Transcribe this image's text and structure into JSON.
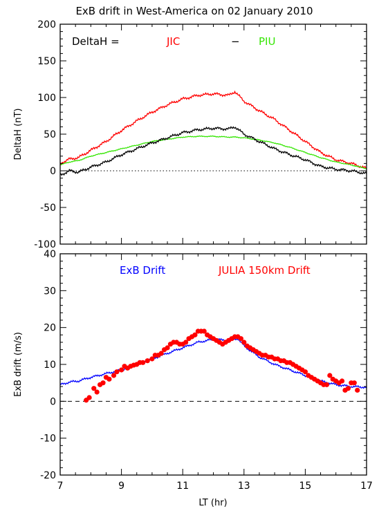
{
  "title": "ExB drift in West-America on 02 January 2010",
  "xlabel": "LT (hr)",
  "colors": {
    "jic": "#ff0000",
    "piu": "#33e600",
    "deltah": "#000000",
    "exb": "#0000ff",
    "julia": "#ff0000",
    "axes": "#000000"
  },
  "chart_data": [
    {
      "type": "line",
      "ylabel": "DeltaH (nT)",
      "xlim": [
        7,
        17
      ],
      "ylim": [
        -100,
        200
      ],
      "xticks": [
        7,
        9,
        11,
        13,
        15,
        17
      ],
      "yticks": [
        -100,
        -50,
        0,
        50,
        100,
        150,
        200
      ],
      "xtick_labels_shown": false,
      "zero_line": "dotted",
      "legend": {
        "placement": "top",
        "text": [
          "DeltaH  =",
          "JIC",
          "−",
          "PIU"
        ]
      },
      "x": [
        7.0,
        7.3,
        7.6,
        8.0,
        8.5,
        9.0,
        9.5,
        10.0,
        10.5,
        11.0,
        11.5,
        12.0,
        12.5,
        12.7,
        13.0,
        13.5,
        14.0,
        14.5,
        15.0,
        15.5,
        16.0,
        16.5,
        17.0
      ],
      "series": [
        {
          "name": "JIC",
          "color": "red",
          "values": [
            10,
            16,
            18,
            28,
            40,
            55,
            68,
            80,
            90,
            98,
            103,
            105,
            103,
            108,
            95,
            82,
            70,
            55,
            40,
            25,
            15,
            10,
            3
          ]
        },
        {
          "name": "PIU",
          "color": "green",
          "values": [
            8,
            12,
            14,
            20,
            25,
            30,
            35,
            40,
            43,
            46,
            47,
            47,
            46,
            46,
            45,
            42,
            38,
            32,
            25,
            18,
            12,
            8,
            3
          ]
        },
        {
          "name": "DeltaH",
          "color": "black",
          "values": [
            -6,
            0,
            -2,
            5,
            12,
            22,
            30,
            38,
            45,
            52,
            56,
            58,
            57,
            60,
            50,
            40,
            30,
            22,
            15,
            6,
            2,
            0,
            -4
          ]
        }
      ]
    },
    {
      "type": "line+scatter",
      "ylabel": "ExB drift (m/s)",
      "xlim": [
        7,
        17
      ],
      "ylim": [
        -20,
        40
      ],
      "xticks": [
        7,
        9,
        11,
        13,
        15,
        17
      ],
      "yticks": [
        -20,
        -10,
        0,
        10,
        20,
        30,
        40
      ],
      "zero_line": "dashed",
      "legend": {
        "placement": "top",
        "text": [
          "ExB Drift",
          "JULIA 150km Drift"
        ]
      },
      "line_series": {
        "name": "ExB Drift",
        "color": "blue",
        "x": [
          7.0,
          7.3,
          7.6,
          8.0,
          8.5,
          9.0,
          9.5,
          10.0,
          10.5,
          11.0,
          11.5,
          12.0,
          12.5,
          12.8,
          13.0,
          13.5,
          14.0,
          14.5,
          15.0,
          15.5,
          16.0,
          16.5,
          17.0
        ],
        "values": [
          4.5,
          5.2,
          5.5,
          6.5,
          7.5,
          8.5,
          10.0,
          11.5,
          13.0,
          14.5,
          16.0,
          16.8,
          16.5,
          17.0,
          15.0,
          12.0,
          10.0,
          8.5,
          7.0,
          5.5,
          4.5,
          4.0,
          3.8
        ]
      },
      "scatter_series": {
        "name": "JULIA 150km Drift",
        "color": "red",
        "points": [
          [
            7.85,
            0.3
          ],
          [
            7.95,
            1.0
          ],
          [
            8.1,
            3.5
          ],
          [
            8.2,
            2.5
          ],
          [
            8.3,
            4.5
          ],
          [
            8.4,
            5.0
          ],
          [
            8.5,
            6.5
          ],
          [
            8.6,
            6.0
          ],
          [
            8.75,
            7.0
          ],
          [
            8.85,
            8.0
          ],
          [
            9.0,
            8.5
          ],
          [
            9.1,
            9.5
          ],
          [
            9.2,
            9.0
          ],
          [
            9.3,
            9.5
          ],
          [
            9.4,
            9.8
          ],
          [
            9.5,
            10.0
          ],
          [
            9.6,
            10.5
          ],
          [
            9.7,
            10.5
          ],
          [
            9.85,
            11.0
          ],
          [
            10.0,
            11.5
          ],
          [
            10.1,
            12.5
          ],
          [
            10.2,
            12.5
          ],
          [
            10.3,
            13.0
          ],
          [
            10.4,
            14.0
          ],
          [
            10.5,
            14.5
          ],
          [
            10.6,
            15.5
          ],
          [
            10.7,
            16.0
          ],
          [
            10.8,
            16.0
          ],
          [
            10.9,
            15.5
          ],
          [
            11.0,
            15.5
          ],
          [
            11.1,
            16.0
          ],
          [
            11.2,
            17.0
          ],
          [
            11.3,
            17.5
          ],
          [
            11.4,
            18.0
          ],
          [
            11.5,
            19.0
          ],
          [
            11.6,
            19.0
          ],
          [
            11.7,
            19.0
          ],
          [
            11.8,
            18.0
          ],
          [
            11.9,
            17.5
          ],
          [
            12.0,
            17.0
          ],
          [
            12.1,
            16.5
          ],
          [
            12.2,
            16.0
          ],
          [
            12.3,
            15.5
          ],
          [
            12.4,
            16.0
          ],
          [
            12.5,
            16.5
          ],
          [
            12.6,
            17.0
          ],
          [
            12.7,
            17.5
          ],
          [
            12.8,
            17.5
          ],
          [
            12.9,
            17.0
          ],
          [
            13.0,
            16.0
          ],
          [
            13.1,
            15.0
          ],
          [
            13.2,
            14.5
          ],
          [
            13.3,
            14.0
          ],
          [
            13.4,
            13.5
          ],
          [
            13.5,
            13.0
          ],
          [
            13.6,
            12.5
          ],
          [
            13.7,
            12.5
          ],
          [
            13.8,
            12.0
          ],
          [
            13.9,
            12.0
          ],
          [
            14.0,
            11.5
          ],
          [
            14.1,
            11.5
          ],
          [
            14.2,
            11.0
          ],
          [
            14.3,
            11.0
          ],
          [
            14.4,
            10.5
          ],
          [
            14.5,
            10.5
          ],
          [
            14.6,
            10.0
          ],
          [
            14.7,
            9.5
          ],
          [
            14.8,
            9.0
          ],
          [
            14.9,
            8.5
          ],
          [
            15.0,
            8.0
          ],
          [
            15.1,
            7.0
          ],
          [
            15.2,
            6.5
          ],
          [
            15.3,
            6.0
          ],
          [
            15.4,
            5.5
          ],
          [
            15.5,
            5.0
          ],
          [
            15.6,
            4.5
          ],
          [
            15.7,
            4.5
          ],
          [
            15.8,
            7.0
          ],
          [
            15.9,
            6.0
          ],
          [
            16.0,
            5.5
          ],
          [
            16.1,
            5.0
          ],
          [
            16.2,
            5.5
          ],
          [
            16.3,
            3.0
          ],
          [
            16.4,
            3.5
          ],
          [
            16.5,
            5.0
          ],
          [
            16.6,
            5.0
          ],
          [
            16.7,
            3.0
          ]
        ]
      }
    }
  ]
}
